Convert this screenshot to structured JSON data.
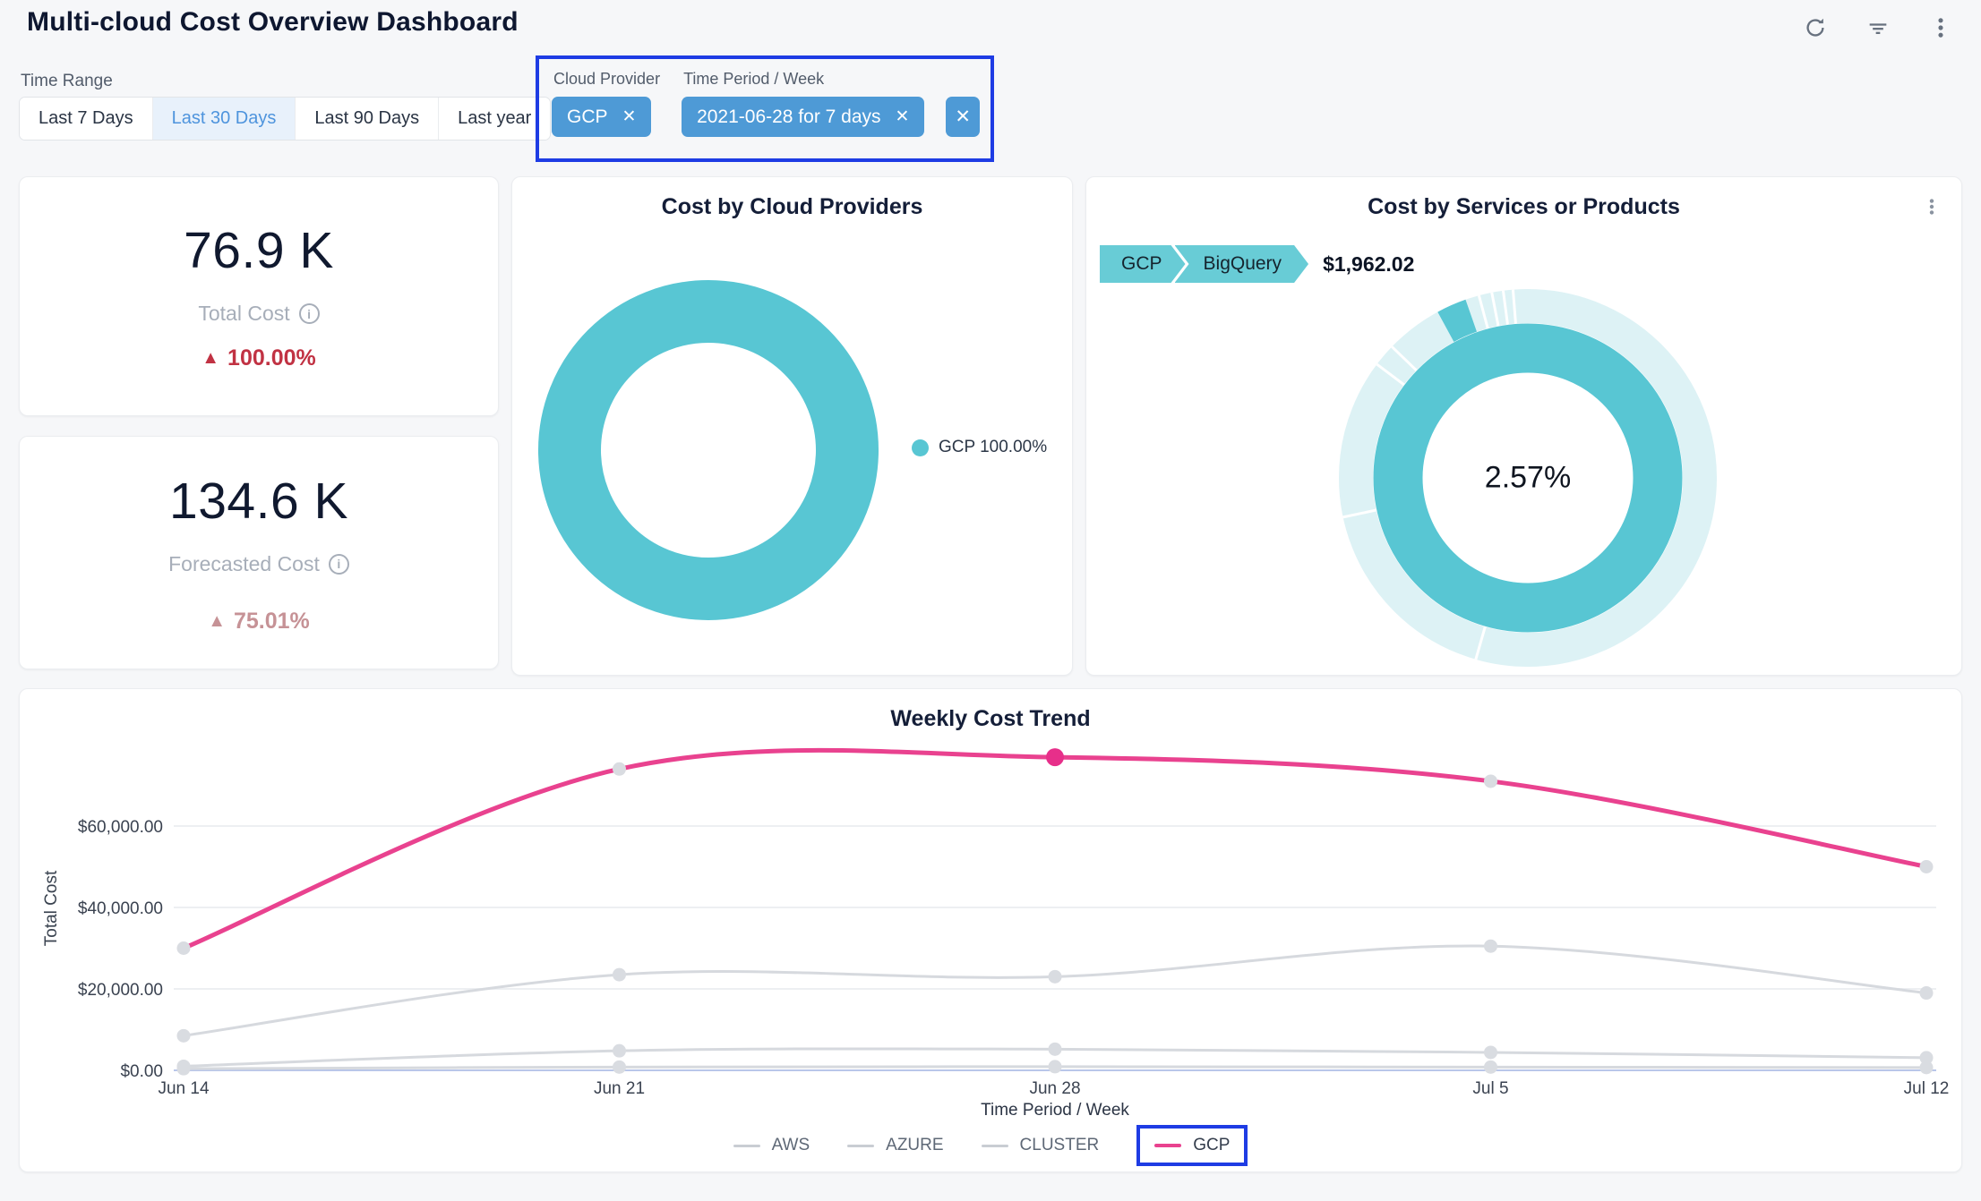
{
  "header": {
    "title": "Multi-cloud Cost Overview Dashboard"
  },
  "toolbar": {
    "icons": [
      "refresh-icon",
      "filter-icon",
      "kebab-menu-icon"
    ]
  },
  "filters": {
    "time_range": {
      "label": "Time Range",
      "options": [
        "Last 7 Days",
        "Last 30 Days",
        "Last 90 Days",
        "Last year"
      ],
      "selected": "Last 30 Days"
    },
    "applied": [
      {
        "label": "Cloud Provider",
        "value": "GCP"
      },
      {
        "label": "Time Period / Week",
        "value": "2021-06-28 for 7 days"
      }
    ],
    "remove_icon": "✕",
    "clear_icon": "✕",
    "highlight_color": "#1e3ce4"
  },
  "kpis": [
    {
      "value": "76.9 K",
      "label": "Total Cost",
      "delta": "100.00%",
      "direction": "up",
      "delta_color": "#c13243"
    },
    {
      "value": "134.6 K",
      "label": "Forecasted Cost",
      "delta": "75.01%",
      "direction": "up",
      "delta_color": "#c69296"
    }
  ],
  "colors": {
    "teal": "#58c6d3",
    "pale_teal": "#ddf2f5",
    "pink": "#e9428f",
    "pink_highlight": "#e72f8a",
    "gray_line": "#d6d9de",
    "gray_dot": "#d9dce1",
    "chip_blue": "#4e9ad6",
    "annotation_blue": "#1e3ce4",
    "grid": "#edeff2",
    "baseline": "#b9c6e9"
  },
  "chart_data": [
    {
      "id": "cost-by-cloud-providers",
      "type": "pie",
      "donut": true,
      "title": "Cost by Cloud Providers",
      "slices": [
        {
          "label": "GCP",
          "value": 100.0,
          "color": "#58c6d3"
        }
      ],
      "legend": [
        {
          "label": "GCP 100.00%",
          "color": "#58c6d3"
        }
      ],
      "legend_position": "right"
    },
    {
      "id": "cost-by-services-or-products",
      "type": "pie",
      "donut": true,
      "title": "Cost by Services or Products",
      "breadcrumb": {
        "path": [
          "GCP",
          "BigQuery"
        ],
        "amount": "$1,962.02"
      },
      "center_label": "2.57%",
      "rings": {
        "inner": [
          {
            "label": "GCP",
            "value": 100,
            "color": "#58c6d3"
          }
        ],
        "outer_base_color": "#ddf2f5",
        "outer_highlight": {
          "label": "BigQuery",
          "value": 2.57,
          "color": "#58c6d3"
        }
      },
      "outer_divider_angles_deg": [
        196,
        258,
        307,
        314,
        345,
        349,
        352.5,
        355.5
      ],
      "highlight_segment_deg": [
        331.5,
        340.75
      ]
    },
    {
      "id": "weekly-cost-trend",
      "type": "line",
      "title": "Weekly Cost Trend",
      "xlabel": "Time Period / Week",
      "ylabel": "Total Cost",
      "x": [
        "Jun 14",
        "Jun 21",
        "Jun 28",
        "Jul 5",
        "Jul 12"
      ],
      "ylim": [
        0,
        80000
      ],
      "grid": true,
      "yticks": [
        {
          "value": 0,
          "label": "$0.00"
        },
        {
          "value": 20000,
          "label": "$20,000.00"
        },
        {
          "value": 40000,
          "label": "$40,000.00"
        },
        {
          "value": 60000,
          "label": "$60,000.00"
        }
      ],
      "series": [
        {
          "name": "AWS",
          "color": "#d6d9de",
          "muted": true,
          "values": [
            400,
            800,
            900,
            800,
            700
          ]
        },
        {
          "name": "AZURE",
          "color": "#d6d9de",
          "muted": true,
          "values": [
            8500,
            23500,
            23000,
            30500,
            19000
          ]
        },
        {
          "name": "CLUSTER",
          "color": "#d6d9de",
          "muted": true,
          "values": [
            1000,
            4800,
            5200,
            4400,
            3100
          ]
        },
        {
          "name": "GCP",
          "color": "#e9428f",
          "muted": false,
          "values": [
            30000,
            74000,
            76900,
            71000,
            50000
          ]
        }
      ],
      "highlight": {
        "series": "GCP",
        "x": "Jun 28",
        "index": 2
      },
      "legend_highlighted": "GCP",
      "legend_position": "bottom"
    }
  ]
}
